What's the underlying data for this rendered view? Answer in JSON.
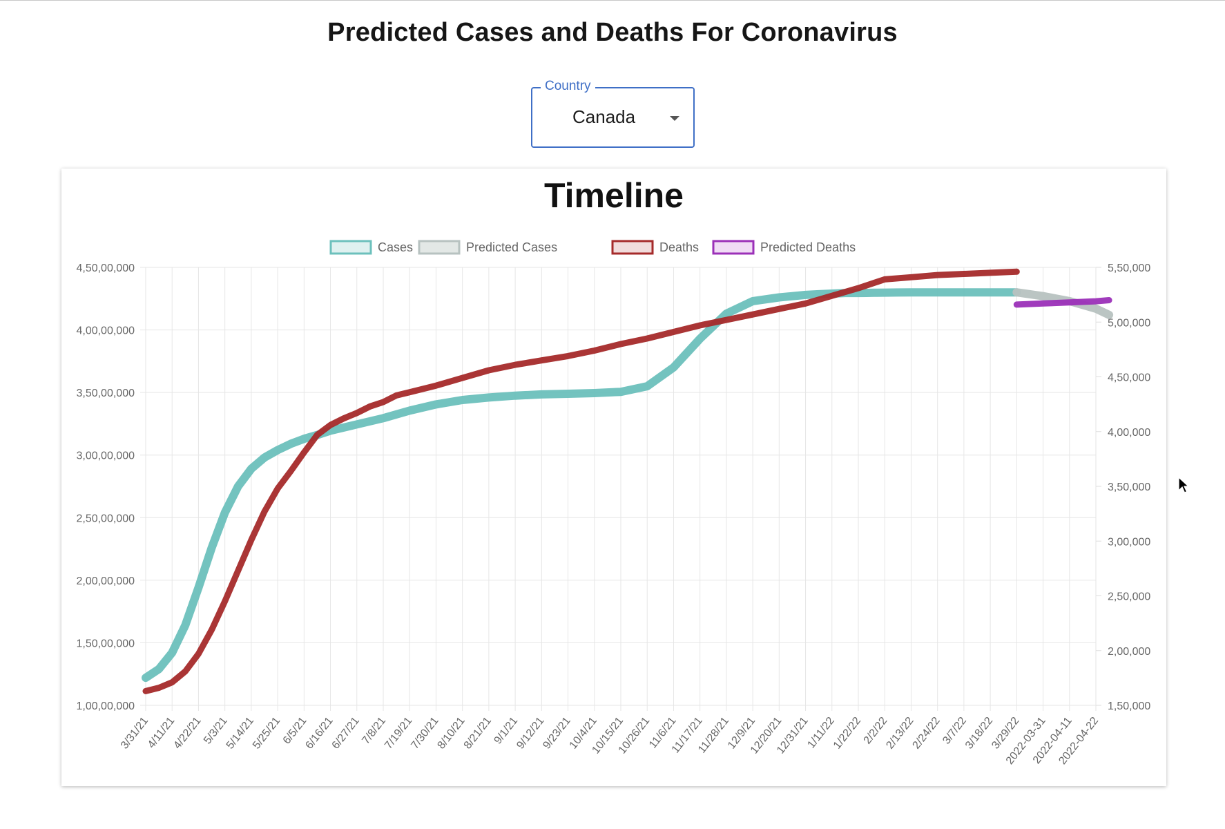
{
  "page": {
    "title": "Predicted Cases and Deaths For Coronavirus"
  },
  "country_select": {
    "label": "Country",
    "value": "Canada",
    "icon": "caret-down-icon"
  },
  "cursor": {
    "icon": "mouse-pointer-icon"
  },
  "chart_data": {
    "type": "line",
    "title": "Timeline",
    "legend_position": "top",
    "grid": true,
    "x_tick_labels": [
      "3/31/21",
      "4/11/21",
      "4/22/21",
      "5/3/21",
      "5/14/21",
      "5/25/21",
      "6/5/21",
      "6/16/21",
      "6/27/21",
      "7/8/21",
      "7/19/21",
      "7/30/21",
      "8/10/21",
      "8/21/21",
      "9/1/21",
      "9/12/21",
      "9/23/21",
      "10/4/21",
      "10/15/21",
      "10/26/21",
      "11/6/21",
      "11/17/21",
      "11/28/21",
      "12/9/21",
      "12/20/21",
      "12/31/21",
      "1/11/22",
      "1/22/22",
      "2/2/22",
      "2/13/22",
      "2/24/22",
      "3/7/22",
      "3/18/22",
      "3/29/22",
      "2022-03-31",
      "2022-04-11",
      "2022-04-22"
    ],
    "y_left": {
      "min": 10000000,
      "max": 45000000,
      "ticks": [
        10000000,
        15000000,
        20000000,
        25000000,
        30000000,
        35000000,
        40000000,
        45000000
      ],
      "tick_labels": [
        "1,00,00,000",
        "1,50,00,000",
        "2,00,00,000",
        "2,50,00,000",
        "3,00,00,000",
        "3,50,00,000",
        "4,00,00,000",
        "4,50,00,000"
      ]
    },
    "y_right": {
      "min": 150000,
      "max": 550000,
      "ticks": [
        150000,
        200000,
        250000,
        300000,
        350000,
        400000,
        450000,
        500000,
        550000
      ],
      "tick_labels": [
        "1,50,000",
        "2,00,000",
        "2,50,000",
        "3,00,000",
        "3,50,000",
        "4,00,000",
        "4,50,000",
        "5,00,000",
        "5,50,000"
      ]
    },
    "series": [
      {
        "name": "Cases",
        "axis": "left",
        "color": "#6cc0bc",
        "fill": "#dff1f0",
        "x": [
          0,
          0.5,
          1,
          1.5,
          2,
          2.5,
          3,
          3.5,
          4,
          4.5,
          5,
          5.5,
          6,
          6.5,
          7,
          8,
          9,
          10,
          11,
          12,
          13,
          14,
          15,
          16,
          17,
          18,
          19,
          20,
          21,
          22,
          23,
          24,
          25,
          25.5,
          26,
          26.5,
          27,
          27.3,
          27.6,
          28,
          28.5,
          29,
          30,
          31,
          32,
          33
        ],
        "y": [
          12200000,
          12900000,
          14200000,
          16400000,
          19400000,
          22600000,
          25400000,
          27500000,
          28900000,
          29800000,
          30400000,
          30900000,
          31300000,
          31600000,
          31950000,
          32450000,
          32950000,
          33550000,
          34050000,
          34400000,
          34600000,
          34750000,
          34850000,
          34900000,
          34950000,
          35050000,
          35500000,
          37000000,
          39300000,
          41300000,
          42300000,
          42600000,
          42800000,
          42850000,
          42900000,
          42950000,
          42950000,
          42960000,
          42970000,
          42980000,
          42990000,
          43000000,
          43000000,
          43000000,
          43000000,
          43000000
        ]
      },
      {
        "name": "Predicted Cases",
        "axis": "left",
        "color": "#b7c2c0",
        "fill": "#e3e8e6",
        "x": [
          33,
          34,
          35,
          36,
          36.5
        ],
        "y": [
          43000000,
          42700000,
          42300000,
          41700000,
          41200000
        ]
      },
      {
        "name": "Deaths",
        "axis": "right",
        "color": "#a52a2a",
        "fill": "#f1dcdc",
        "x": [
          0,
          0.5,
          1,
          1.5,
          2,
          2.5,
          3,
          3.5,
          4,
          4.5,
          5,
          5.5,
          6,
          6.5,
          7,
          7.5,
          8,
          8.5,
          9,
          9.5,
          10,
          11,
          12,
          13,
          14,
          15,
          16,
          17,
          18,
          19,
          20,
          21,
          22,
          23,
          24,
          25,
          26,
          27,
          28,
          29,
          30,
          31,
          32,
          33
        ],
        "y": [
          163000,
          166000,
          171000,
          181000,
          197000,
          219000,
          245000,
          273000,
          301000,
          327000,
          348000,
          364000,
          381000,
          397000,
          406000,
          412000,
          417000,
          423000,
          427000,
          433000,
          436000,
          442000,
          449000,
          456000,
          461000,
          465000,
          469000,
          474000,
          480000,
          485000,
          491000,
          497000,
          502000,
          507000,
          512000,
          517000,
          524000,
          531000,
          539000,
          541000,
          543000,
          544000,
          545000,
          546000
        ]
      },
      {
        "name": "Predicted Deaths",
        "axis": "right",
        "color": "#9b30b8",
        "fill": "#f0dcf5",
        "x": [
          33,
          34,
          35,
          36,
          36.5
        ],
        "y": [
          516000,
          517000,
          518000,
          519000,
          520000
        ]
      }
    ]
  }
}
